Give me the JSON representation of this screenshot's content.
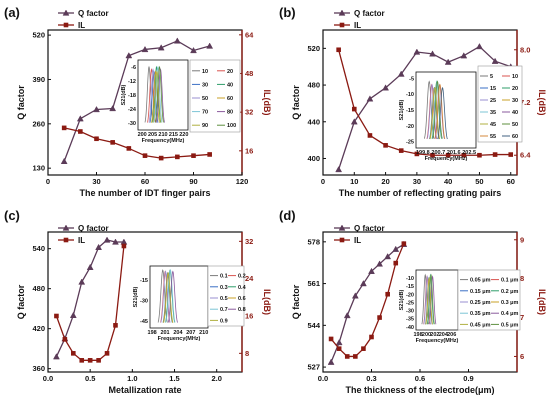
{
  "chart_data": [
    {
      "type": "line",
      "panel": "(a)",
      "xlabel": "The number of IDT finger pairs",
      "ylabel_left": "Q factor",
      "ylabel_right": "IL(dB)",
      "xlim": [
        0,
        120
      ],
      "xticks": [
        "0",
        "30",
        "60",
        "90",
        "120"
      ],
      "ylim_left": [
        110,
        535
      ],
      "yticks_left": [
        "130",
        "260",
        "390",
        "520"
      ],
      "ylim_right": [
        6,
        66
      ],
      "yticks_right": [
        "16",
        "32",
        "48",
        "64"
      ],
      "x": [
        10,
        20,
        30,
        40,
        50,
        60,
        70,
        80,
        90,
        100
      ],
      "series": [
        {
          "name": "Q factor",
          "axis": "left",
          "color": "#5b3b58",
          "marker": "triangle",
          "values": [
            150,
            275,
            302,
            305,
            460,
            478,
            483,
            503,
            475,
            488
          ]
        },
        {
          "name": "IL",
          "axis": "right",
          "color": "#8b1a12",
          "marker": "square",
          "values": [
            25.5,
            24,
            21,
            19.5,
            17,
            14,
            13,
            13.5,
            14,
            14.5
          ]
        }
      ],
      "inset": {
        "xlabel": "Frequency(MHz)",
        "ylabel": "S21(dB)",
        "xlim": [
          198,
          222
        ],
        "xticks": [
          "200",
          "205",
          "210",
          "215",
          "220"
        ],
        "ylim": [
          -33,
          -3
        ],
        "yticks": [
          "-6",
          "-12",
          "-18",
          "-24",
          "-30"
        ],
        "legend": [
          "10",
          "20",
          "30",
          "40",
          "50",
          "60",
          "70",
          "80",
          "90",
          "100"
        ]
      }
    },
    {
      "type": "line",
      "panel": "(b)",
      "xlabel": "The number of reflecting grating pairs",
      "ylabel_left": "Q factor",
      "ylabel_right": "IL(dB)",
      "xlim": [
        0,
        62
      ],
      "xticks": [
        "0",
        "10",
        "20",
        "30",
        "40",
        "50",
        "60"
      ],
      "ylim_left": [
        382,
        540
      ],
      "yticks_left": [
        "400",
        "440",
        "480",
        "520"
      ],
      "ylim_right": [
        6.1,
        8.3
      ],
      "yticks_right": [
        "6.4",
        "7.2",
        "8.0"
      ],
      "x": [
        5,
        10,
        15,
        20,
        25,
        30,
        35,
        40,
        45,
        50,
        55,
        60
      ],
      "series": [
        {
          "name": "Q factor",
          "axis": "left",
          "color": "#5b3b58",
          "marker": "triangle",
          "values": [
            388,
            440,
            465,
            477,
            492,
            516,
            514,
            505,
            512,
            522,
            506,
            500
          ]
        },
        {
          "name": "IL",
          "axis": "right",
          "color": "#8b1a12",
          "marker": "square",
          "values": [
            8.0,
            7.1,
            6.7,
            6.55,
            6.47,
            6.42,
            6.4,
            6.4,
            6.4,
            6.4,
            6.41,
            6.41
          ]
        }
      ],
      "inset": {
        "xlabel": "Frequency(MHz)",
        "ylabel": "S21(dB)",
        "xlim": [
          199.4,
          202.9
        ],
        "xticks": [
          "199.8",
          "200.7",
          "201.6",
          "202.5"
        ],
        "ylim": [
          -27,
          -3
        ],
        "yticks": [
          "-5",
          "-10",
          "-15",
          "-20",
          "-25"
        ],
        "legend": [
          "5",
          "10",
          "15",
          "20",
          "25",
          "30",
          "35",
          "40",
          "45",
          "50",
          "55",
          "60"
        ]
      }
    },
    {
      "type": "line",
      "panel": "(c)",
      "xlabel": "Metallization rate",
      "ylabel_left": "Q factor",
      "ylabel_right": "IL(dB)",
      "xlim": [
        0,
        2.3
      ],
      "xticks": [
        "0.0",
        "0.5",
        "1.0",
        "1.5",
        "2.0"
      ],
      "ylim_left": [
        355,
        565
      ],
      "yticks_left": [
        "360",
        "420",
        "480",
        "540"
      ],
      "ylim_right": [
        4,
        34
      ],
      "yticks_right": [
        "8",
        "16",
        "24",
        "32"
      ],
      "x": [
        0.1,
        0.2,
        0.3,
        0.4,
        0.5,
        0.6,
        0.7,
        0.8,
        0.9
      ],
      "series": [
        {
          "name": "Q factor",
          "axis": "left",
          "color": "#5b3b58",
          "marker": "triangle",
          "values": [
            378,
            405,
            440,
            490,
            512,
            542,
            553,
            550,
            550
          ]
        },
        {
          "name": "IL",
          "axis": "right",
          "color": "#8b1a12",
          "marker": "square",
          "values": [
            16,
            11,
            8,
            6.5,
            6.5,
            6.5,
            8,
            14,
            31
          ]
        }
      ],
      "inset": {
        "xlabel": "Frequency(MHz)",
        "ylabel": "S21(dB)",
        "xlim": [
          197.5,
          211
        ],
        "xticks": [
          "198",
          "201",
          "204",
          "207",
          "210"
        ],
        "ylim": [
          -50,
          -5
        ],
        "yticks": [
          "-15",
          "-30",
          "-45"
        ],
        "legend": [
          "0.1",
          "0.2",
          "0.3",
          "0.4",
          "0.5",
          "0.6",
          "0.7",
          "0.8",
          "0.9"
        ]
      }
    },
    {
      "type": "line",
      "panel": "(d)",
      "xlabel": "The thickness of the electrode(μm)",
      "ylabel_left": "Q factor",
      "ylabel_right": "IL(dB)",
      "xlim": [
        0,
        1.2
      ],
      "xticks": [
        "0.0",
        "0.3",
        "0.6",
        "0.9"
      ],
      "ylim_left": [
        525,
        582
      ],
      "yticks_left": [
        "527",
        "544",
        "561",
        "578"
      ],
      "ylim_right": [
        5.6,
        9.2
      ],
      "yticks_right": [
        "6",
        "7",
        "8",
        "9"
      ],
      "x": [
        0.05,
        0.1,
        0.15,
        0.2,
        0.25,
        0.3,
        0.35,
        0.4,
        0.45,
        0.5
      ],
      "series": [
        {
          "name": "Q factor",
          "axis": "left",
          "color": "#5b3b58",
          "marker": "triangle",
          "values": [
            529,
            537,
            548,
            556,
            561,
            566,
            569,
            572,
            575,
            577
          ]
        },
        {
          "name": "IL",
          "axis": "right",
          "color": "#8b1a12",
          "marker": "square",
          "values": [
            6.45,
            6.2,
            6.0,
            6.0,
            6.2,
            6.5,
            7.0,
            7.6,
            8.4,
            8.9
          ]
        }
      ],
      "inset": {
        "xlabel": "Frequency(MHz)",
        "ylabel": "S21(dB)",
        "xlim": [
          197.5,
          207.5
        ],
        "xticks": [
          "198",
          "200",
          "202",
          "204",
          "206"
        ],
        "ylim": [
          -42,
          -5
        ],
        "yticks": [
          "-10",
          "-15",
          "-20",
          "-25",
          "-30",
          "-35",
          "-40"
        ],
        "legend": [
          "0.05 μm",
          "0.1 μm",
          "0.15 μm",
          "0.2 μm",
          "0.25 μm",
          "0.3 μm",
          "0.35 μm",
          "0.4 μm",
          "0.45 μm",
          "0.5 μm"
        ]
      }
    }
  ],
  "inset_palette": [
    "#7a7a7a",
    "#d9534f",
    "#3a6fc4",
    "#2e9d6a",
    "#9a8fd0",
    "#c9a227",
    "#7cc4d6",
    "#8a5a9c",
    "#b0b040",
    "#5e8f3e",
    "#d68a3c",
    "#406080"
  ]
}
